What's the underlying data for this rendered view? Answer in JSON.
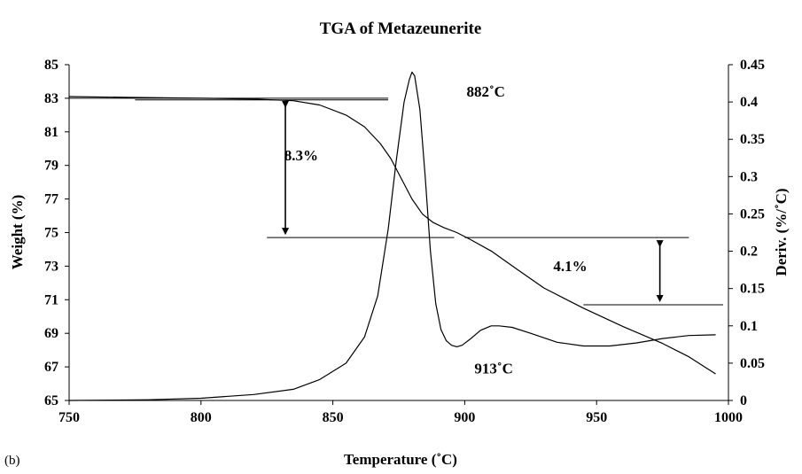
{
  "chart_data": {
    "type": "line",
    "title": "TGA of Metazeunerite",
    "panel_label": "(b)",
    "xlabel": "Temperature (˚C)",
    "ylabel": "Weight (%)",
    "y2label": "Deriv. (%/˚C)",
    "xlim": [
      750,
      1000
    ],
    "ylim": [
      65,
      85
    ],
    "y2lim": [
      0,
      0.45
    ],
    "x_ticks": [
      "750",
      "800",
      "850",
      "900",
      "950",
      "1000"
    ],
    "y_ticks": [
      "65",
      "67",
      "69",
      "71",
      "73",
      "75",
      "77",
      "79",
      "81",
      "83",
      "85"
    ],
    "y2_ticks": [
      "0",
      "0.05",
      "0.1",
      "0.15",
      "0.2",
      "0.25",
      "0.3",
      "0.35",
      "0.4",
      "0.45"
    ],
    "grid": false,
    "series": [
      {
        "axis": "left",
        "x": [
          750,
          775,
          800,
          820,
          835,
          845,
          855,
          862,
          868,
          872,
          876,
          880,
          884,
          888,
          892,
          897,
          902,
          910,
          920,
          930,
          945,
          960,
          975,
          985,
          990,
          995
        ],
        "y": [
          83.1,
          83.05,
          83.0,
          82.95,
          82.85,
          82.6,
          82.0,
          81.3,
          80.3,
          79.4,
          78.2,
          77.0,
          76.1,
          75.6,
          75.3,
          75.0,
          74.6,
          73.9,
          72.8,
          71.7,
          70.5,
          69.4,
          68.4,
          67.6,
          67.1,
          66.6
        ]
      },
      {
        "axis": "right",
        "x": [
          750,
          780,
          800,
          820,
          835,
          845,
          855,
          862,
          867,
          871,
          874,
          877,
          879,
          880,
          881,
          883,
          885,
          887,
          889,
          891,
          893,
          895,
          897,
          899,
          902,
          906,
          910,
          913,
          918,
          925,
          935,
          945,
          955,
          965,
          975,
          985,
          995
        ],
        "y": [
          0.0,
          0.001,
          0.003,
          0.008,
          0.015,
          0.028,
          0.05,
          0.085,
          0.14,
          0.23,
          0.32,
          0.4,
          0.43,
          0.44,
          0.435,
          0.39,
          0.3,
          0.2,
          0.13,
          0.095,
          0.08,
          0.074,
          0.072,
          0.074,
          0.082,
          0.094,
          0.1,
          0.1,
          0.098,
          0.09,
          0.078,
          0.073,
          0.073,
          0.077,
          0.083,
          0.087,
          0.088
        ]
      }
    ],
    "annotations": [
      {
        "text": "882˚C",
        "x": 908,
        "y": 83.1
      },
      {
        "text": "913˚C",
        "x": 911,
        "y": 66.6
      },
      {
        "text": "8.3%",
        "x": 838,
        "y": 79.3
      },
      {
        "text": "4.1%",
        "x": 940,
        "y": 72.7
      }
    ],
    "reference_lines": [
      {
        "x1": 750,
        "x2": 871,
        "y": 83.0
      },
      {
        "x1": 775,
        "x2": 871,
        "y": 82.9
      },
      {
        "x1": 825,
        "x2": 896,
        "y": 74.7
      },
      {
        "x1": 900,
        "x2": 985,
        "y": 74.7
      },
      {
        "x1": 945,
        "x2": 998,
        "y": 70.7
      }
    ],
    "arrows": [
      {
        "x": 832,
        "y_from": 83.0,
        "y_to": 74.7
      },
      {
        "x": 974,
        "y_from": 74.7,
        "y_to": 70.7
      }
    ]
  }
}
